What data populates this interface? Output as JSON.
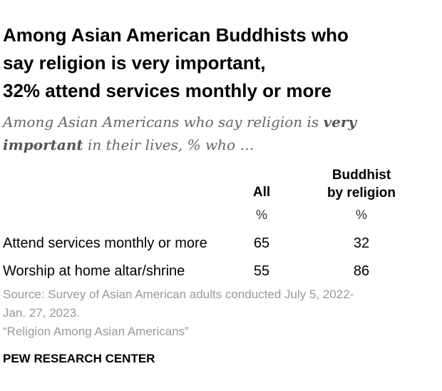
{
  "title_lines": [
    "Among Asian American Buddhists who",
    "say religion is very important,",
    "32% attend services monthly or more"
  ],
  "subtitle": {
    "line1_prefix": "Among Asian Americans who say religion is ",
    "line1_bold": "very",
    "line2_bold": "important",
    "line2_suffix": " in their lives, % who …"
  },
  "chart_data": {
    "type": "table",
    "columns": [
      {
        "header_lines": [
          "All"
        ],
        "unit": "%"
      },
      {
        "header_lines": [
          "Buddhist",
          "by religion"
        ],
        "unit": "%"
      }
    ],
    "rows": [
      {
        "label": "Attend services monthly or more",
        "values": [
          "65",
          "32"
        ]
      },
      {
        "label": "Worship at home altar/shrine",
        "values": [
          "55",
          "86"
        ]
      }
    ]
  },
  "source_lines": [
    "Source: Survey of Asian American adults conducted July 5, 2022-",
    "Jan. 27, 2023.",
    "“Religion Among Asian Americans”"
  ],
  "org": "PEW RESEARCH CENTER"
}
